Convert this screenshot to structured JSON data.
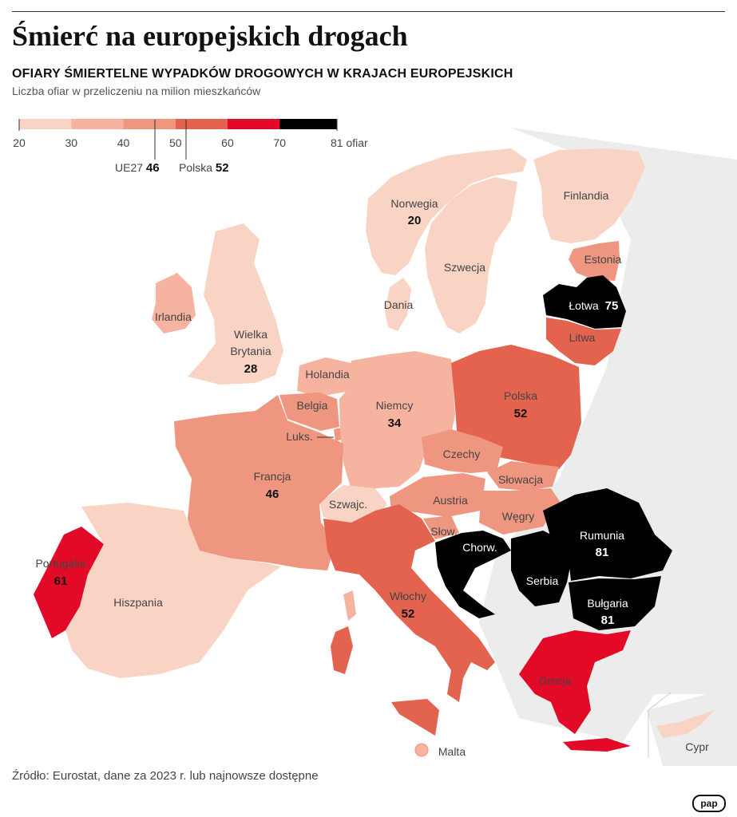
{
  "title": "Śmierć na europejskich drogach",
  "subtitle": "OFIARY ŚMIERTELNE WYPADKÓW DROGOWYCH W KRAJACH EUROPEJSKICH",
  "description": "Liczba ofiar w przeliczeniu na milion mieszkańców",
  "legend": {
    "ticks": [
      "20",
      "30",
      "40",
      "50",
      "60",
      "70",
      "81 ofiar"
    ],
    "bins": [
      {
        "from": 20,
        "to": 30,
        "color": "#f9d3c4"
      },
      {
        "from": 30,
        "to": 40,
        "color": "#f6b3a0"
      },
      {
        "from": 40,
        "to": 50,
        "color": "#ef9680"
      },
      {
        "from": 50,
        "to": 60,
        "color": "#e4634f"
      },
      {
        "from": 60,
        "to": 70,
        "color": "#e20a27"
      },
      {
        "from": 70,
        "to": 81,
        "color": "#000000"
      }
    ],
    "markers": [
      {
        "label": "UE27",
        "value": "46"
      },
      {
        "label": "Polska",
        "value": "52"
      }
    ]
  },
  "countries": {
    "norwegia": {
      "name": "Norwegia",
      "value": "20"
    },
    "finlandia": {
      "name": "Finlandia"
    },
    "szwecja": {
      "name": "Szwecja"
    },
    "estonia": {
      "name": "Estonia"
    },
    "lotwa": {
      "name": "Łotwa",
      "value": "75"
    },
    "litwa": {
      "name": "Litwa"
    },
    "dania": {
      "name": "Dania"
    },
    "irlandia": {
      "name": "Irlandia"
    },
    "wielka_brytania": {
      "name_line1": "Wielka",
      "name_line2": "Brytania",
      "value": "28"
    },
    "holandia": {
      "name": "Holandia"
    },
    "belgia": {
      "name": "Belgia"
    },
    "luksemburg": {
      "name": "Luks."
    },
    "niemcy": {
      "name": "Niemcy",
      "value": "34"
    },
    "polska": {
      "name": "Polska",
      "value": "52"
    },
    "czechy": {
      "name": "Czechy"
    },
    "slowacja": {
      "name": "Słowacja"
    },
    "austria": {
      "name": "Austria"
    },
    "wegry": {
      "name": "Węgry"
    },
    "slowenia": {
      "name": "Słow."
    },
    "szwajcaria": {
      "name": "Szwajc."
    },
    "francja": {
      "name": "Francja",
      "value": "46"
    },
    "chorwacja": {
      "name": "Chorw."
    },
    "rumunia": {
      "name": "Rumunia",
      "value": "81"
    },
    "serbia": {
      "name": "Serbia"
    },
    "bulgaria": {
      "name": "Bułgaria",
      "value": "81"
    },
    "portugalia": {
      "name": "Portugalia",
      "value": "61"
    },
    "hiszpania": {
      "name": "Hiszpania"
    },
    "wlochy": {
      "name": "Włochy",
      "value": "52"
    },
    "grecja": {
      "name": "Grecja"
    },
    "malta": {
      "name": "Malta"
    },
    "cypr": {
      "name": "Cypr"
    }
  },
  "colors": {
    "bin20": "#f9d3c4",
    "bin30": "#f6b3a0",
    "bin40": "#ef9680",
    "bin50": "#e4634f",
    "bin60": "#e20a27",
    "bin70": "#000000",
    "no_data": "#e8e8e8"
  },
  "source": "Źródło: Eurostat, dane za 2023 r. lub najnowsze dostępne",
  "logo": "pap"
}
